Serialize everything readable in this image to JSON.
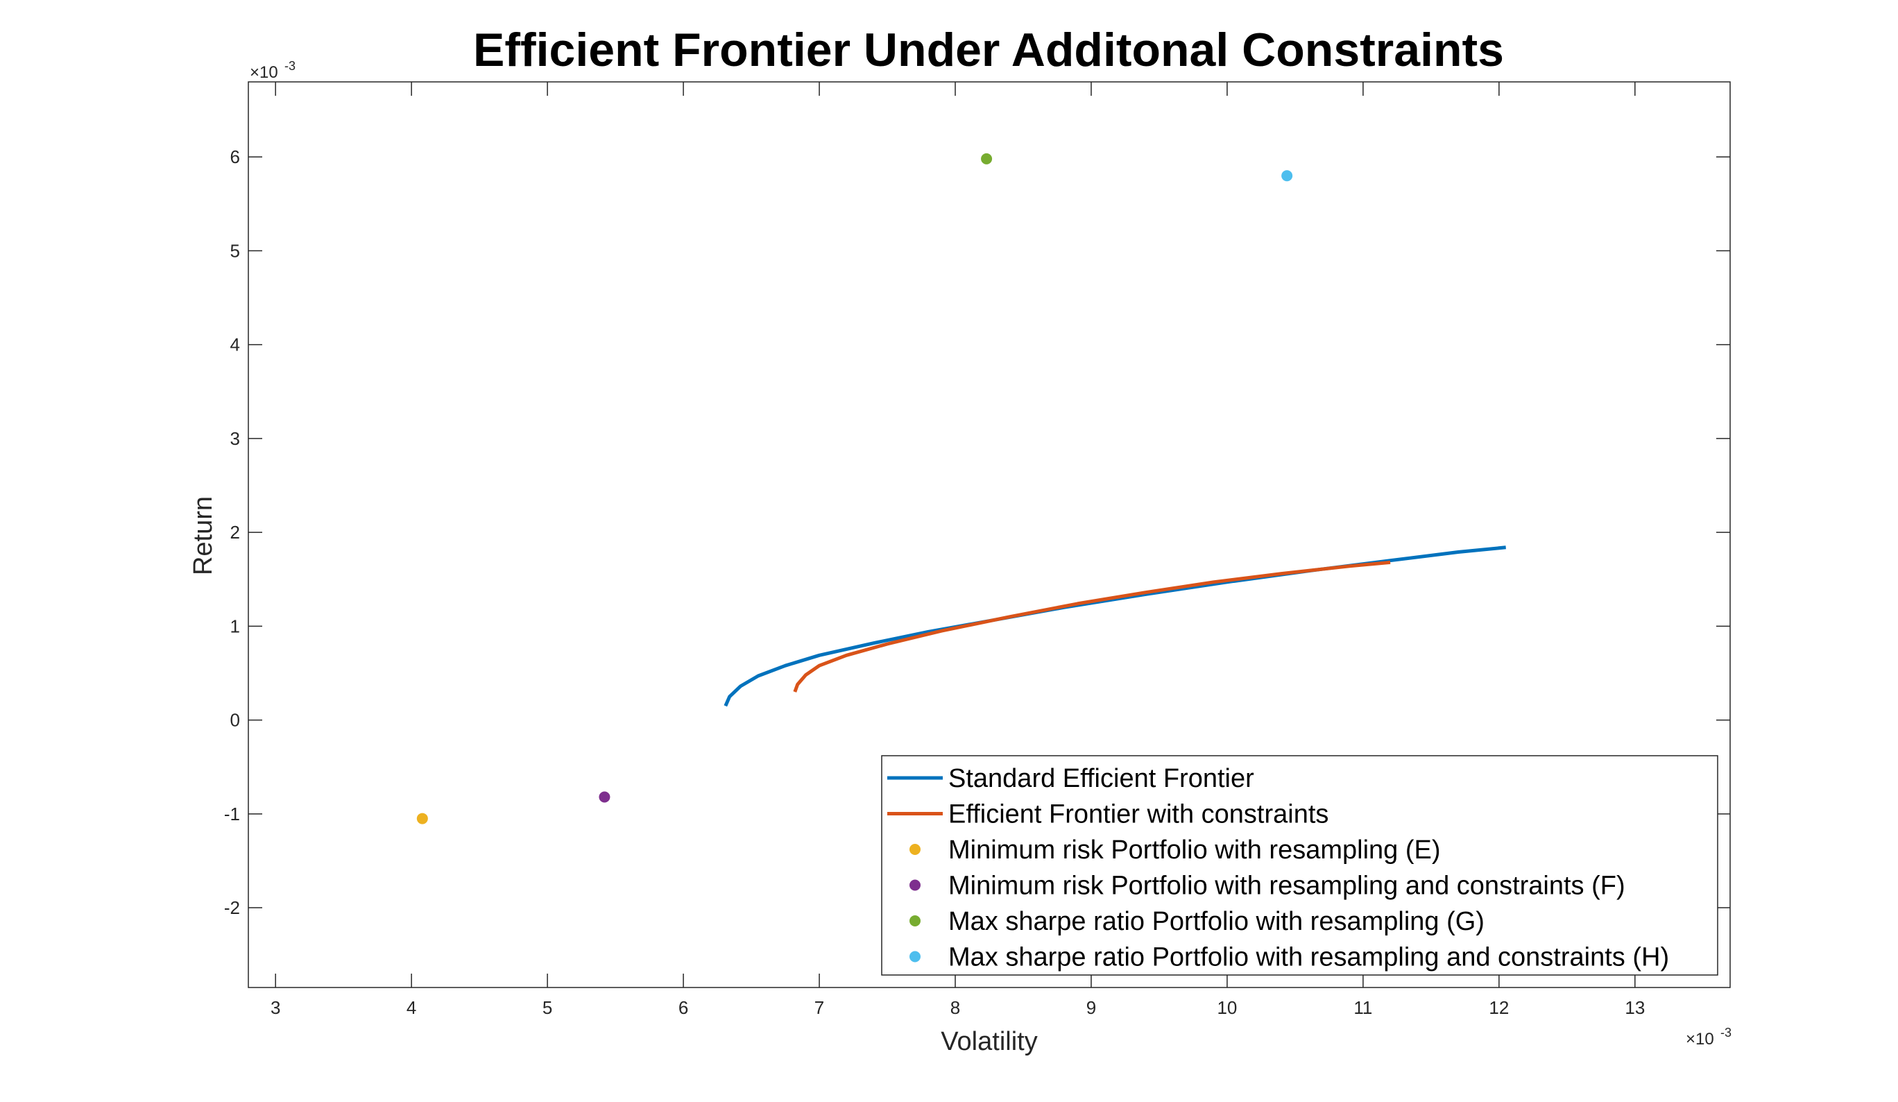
{
  "chart_data": {
    "type": "line",
    "title": "Efficient Frontier Under Additonal Constraints",
    "xlabel": "Volatility",
    "ylabel": "Return",
    "x_exponent_label": "×10",
    "x_exponent": "-3",
    "y_exponent_label": "×10",
    "y_exponent": "-3",
    "xlim": [
      2.8,
      13.7
    ],
    "ylim": [
      -2.85,
      6.8
    ],
    "xticks": [
      3,
      4,
      5,
      6,
      7,
      8,
      9,
      10,
      11,
      12,
      13
    ],
    "yticks": [
      -2,
      -1,
      0,
      1,
      2,
      3,
      4,
      5,
      6
    ],
    "grid": false,
    "legend_position": "bottom-right",
    "series": [
      {
        "name": "Standard Efficient Frontier",
        "kind": "line",
        "color": "#0072BD",
        "x": [
          6.31,
          6.34,
          6.42,
          6.55,
          6.75,
          7.0,
          7.4,
          7.8,
          8.3,
          8.8,
          9.4,
          10.0,
          10.6,
          11.2,
          11.7,
          12.05
        ],
        "y": [
          0.15,
          0.25,
          0.36,
          0.47,
          0.58,
          0.69,
          0.82,
          0.94,
          1.07,
          1.2,
          1.34,
          1.47,
          1.59,
          1.7,
          1.79,
          1.84
        ]
      },
      {
        "name": "Efficient Frontier with constraints",
        "kind": "line",
        "color": "#D95319",
        "x": [
          6.82,
          6.84,
          6.9,
          7.0,
          7.2,
          7.5,
          7.9,
          8.4,
          8.9,
          9.4,
          9.9,
          10.4,
          10.9,
          11.2
        ],
        "y": [
          0.3,
          0.38,
          0.48,
          0.58,
          0.69,
          0.81,
          0.95,
          1.1,
          1.24,
          1.36,
          1.47,
          1.56,
          1.64,
          1.68
        ]
      },
      {
        "name": "Minimum risk Portfolio with resampling (E)",
        "kind": "point",
        "color": "#EDB120",
        "x": [
          4.08
        ],
        "y": [
          -1.05
        ]
      },
      {
        "name": "Minimum risk Portfolio with resampling and constraints (F)",
        "kind": "point",
        "color": "#7E2F8E",
        "x": [
          5.42
        ],
        "y": [
          -0.82
        ]
      },
      {
        "name": "Max sharpe ratio Portfolio with resampling (G)",
        "kind": "point",
        "color": "#77AC30",
        "x": [
          8.23
        ],
        "y": [
          5.98
        ]
      },
      {
        "name": "Max sharpe ratio Portfolio with resampling and constraints (H)",
        "kind": "point",
        "color": "#4DBEEE",
        "x": [
          10.44
        ],
        "y": [
          5.8
        ]
      }
    ]
  }
}
